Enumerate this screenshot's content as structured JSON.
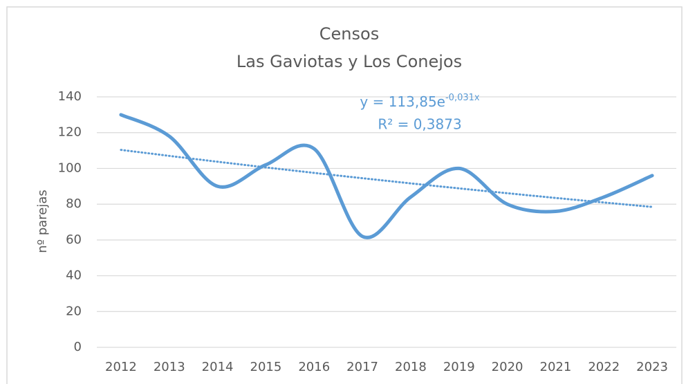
{
  "chart_data": {
    "type": "line",
    "title": "Censos",
    "subtitle": "Las Gaviotas y Los Conejos",
    "y_label": "nº parejas",
    "categories": [
      "2012",
      "2013",
      "2014",
      "2015",
      "2016",
      "2017",
      "2018",
      "2019",
      "2020",
      "2021",
      "2022",
      "2023"
    ],
    "series": [
      {
        "name": "Censos",
        "color": "#5b9bd5",
        "values": [
          130,
          118,
          90,
          102,
          111,
          62,
          84,
          100,
          80,
          76,
          84,
          96
        ]
      }
    ],
    "ylim": [
      0,
      140
    ],
    "yticks": [
      0,
      20,
      40,
      60,
      80,
      100,
      120,
      140
    ],
    "grid": true,
    "trendline": {
      "type": "exponential",
      "coefficient": 113.85,
      "rate": -0.031,
      "equation": "y = 113,85e",
      "exponent": "-0,031x",
      "r2_label": "R² = 0,3873"
    }
  }
}
